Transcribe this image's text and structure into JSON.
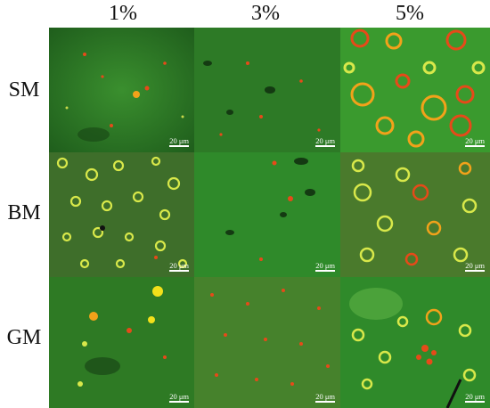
{
  "columns": [
    "1%",
    "3%",
    "5%"
  ],
  "rows": [
    "SM",
    "BM",
    "GM"
  ],
  "scale_bar_label": "20 μm",
  "colors": {
    "background_green": "#2f8a2a",
    "particle_red": "#e64a19",
    "vesicle_yellow": "#d8e84a"
  },
  "panels": [
    {
      "row": "SM",
      "col": "1%",
      "scale": "20 μm"
    },
    {
      "row": "SM",
      "col": "3%",
      "scale": "20 μm"
    },
    {
      "row": "SM",
      "col": "5%",
      "scale": "20 μm"
    },
    {
      "row": "BM",
      "col": "1%",
      "scale": "20 μm"
    },
    {
      "row": "BM",
      "col": "3%",
      "scale": "20 μm"
    },
    {
      "row": "BM",
      "col": "5%",
      "scale": "20 μm"
    },
    {
      "row": "GM",
      "col": "1%",
      "scale": "20 μm"
    },
    {
      "row": "GM",
      "col": "3%",
      "scale": "20 μm"
    },
    {
      "row": "GM",
      "col": "5%",
      "scale": "20 μm"
    }
  ]
}
